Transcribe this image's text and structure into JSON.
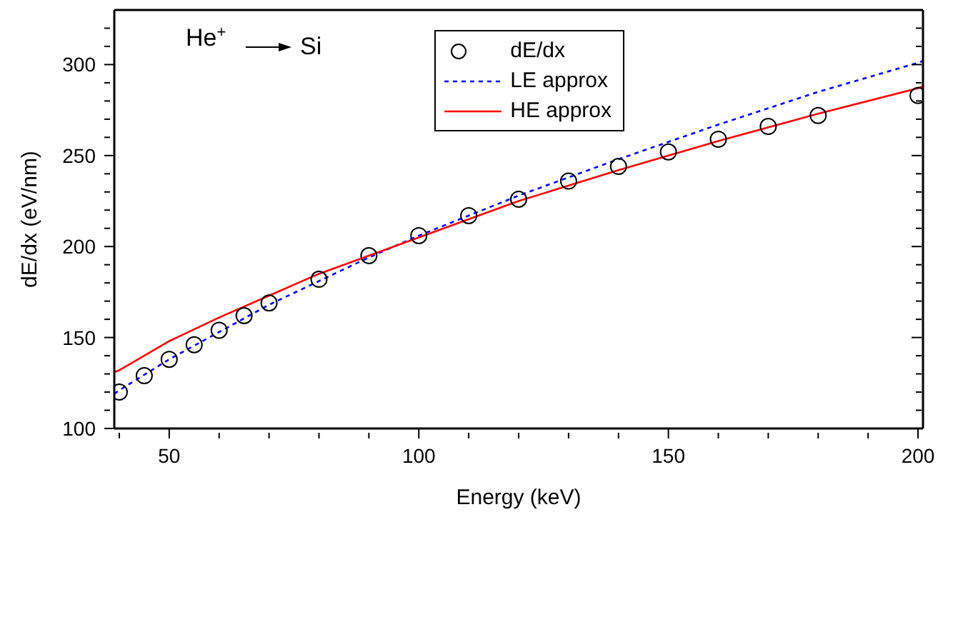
{
  "chart_data": {
    "type": "line",
    "xlabel": "Energy (keV)",
    "ylabel": "dE/dx (eV/nm)",
    "annotations": [
      "He$^{+}$",
      "Si"
    ],
    "xlim": [
      39,
      201
    ],
    "ylim": [
      100,
      330
    ],
    "xticks": [
      {
        "value": 40,
        "label": null
      },
      50,
      {
        "value": 60,
        "label": null
      },
      {
        "value": 70,
        "label": null
      },
      {
        "value": 80,
        "label": null
      },
      {
        "value": 90,
        "label": null
      },
      100,
      {
        "value": 110,
        "label": null
      },
      {
        "value": 120,
        "label": null
      },
      {
        "value": 130,
        "label": null
      },
      {
        "value": 140,
        "label": null
      },
      150,
      {
        "value": 160,
        "label": null
      },
      {
        "value": 170,
        "label": null
      },
      {
        "value": 180,
        "label": null
      },
      {
        "value": 190,
        "label": null
      },
      200
    ],
    "yticks": [
      100,
      {
        "value": 110,
        "label": null
      },
      {
        "value": 120,
        "label": null
      },
      {
        "value": 130,
        "label": null
      },
      {
        "value": 140,
        "label": null
      },
      150,
      {
        "value": 160,
        "label": null
      },
      {
        "value": 170,
        "label": null
      },
      {
        "value": 180,
        "label": null
      },
      {
        "value": 190,
        "label": null
      },
      200,
      {
        "value": 210,
        "label": null
      },
      {
        "value": 220,
        "label": null
      },
      {
        "value": 230,
        "label": null
      },
      {
        "value": 240,
        "label": null
      },
      250,
      {
        "value": 260,
        "label": null
      },
      {
        "value": 270,
        "label": null
      },
      {
        "value": 280,
        "label": null
      },
      {
        "value": 290,
        "label": null
      },
      300,
      {
        "value": 310,
        "label": null
      },
      {
        "value": 320,
        "label": null
      }
    ],
    "legend": "top right",
    "series": [
      {
        "name": "dE/dx",
        "type": "scatter",
        "marker": "circle",
        "color": "#000000",
        "x": [
          40,
          45,
          50,
          55,
          60,
          65,
          70,
          80,
          90,
          100,
          110,
          120,
          130,
          140,
          150,
          160,
          170,
          180,
          200
        ],
        "values": [
          120,
          129,
          138,
          146,
          154,
          162,
          169,
          182,
          195,
          206,
          217,
          226,
          236,
          244,
          252,
          259,
          266,
          272,
          283
        ]
      },
      {
        "name": "LE approx",
        "line_style": "dotted",
        "marker": "none",
        "color": "#0000ff",
        "x": [
          39,
          40,
          50,
          60,
          70,
          80,
          90,
          100,
          120,
          140,
          160,
          180,
          200,
          201
        ],
        "values": [
          119,
          121,
          138,
          153,
          168,
          181,
          194,
          206,
          228,
          248,
          267,
          285,
          301,
          302
        ]
      },
      {
        "name": "HE approx",
        "line_style": "solid",
        "marker": "none",
        "color": "#ff0000",
        "x": [
          39,
          40,
          50,
          60,
          70,
          80,
          90,
          100,
          120,
          140,
          160,
          180,
          200,
          201
        ],
        "values": [
          131,
          132,
          148,
          161,
          173,
          185,
          195,
          205,
          225,
          242,
          258,
          273,
          287,
          288
        ]
      }
    ]
  }
}
